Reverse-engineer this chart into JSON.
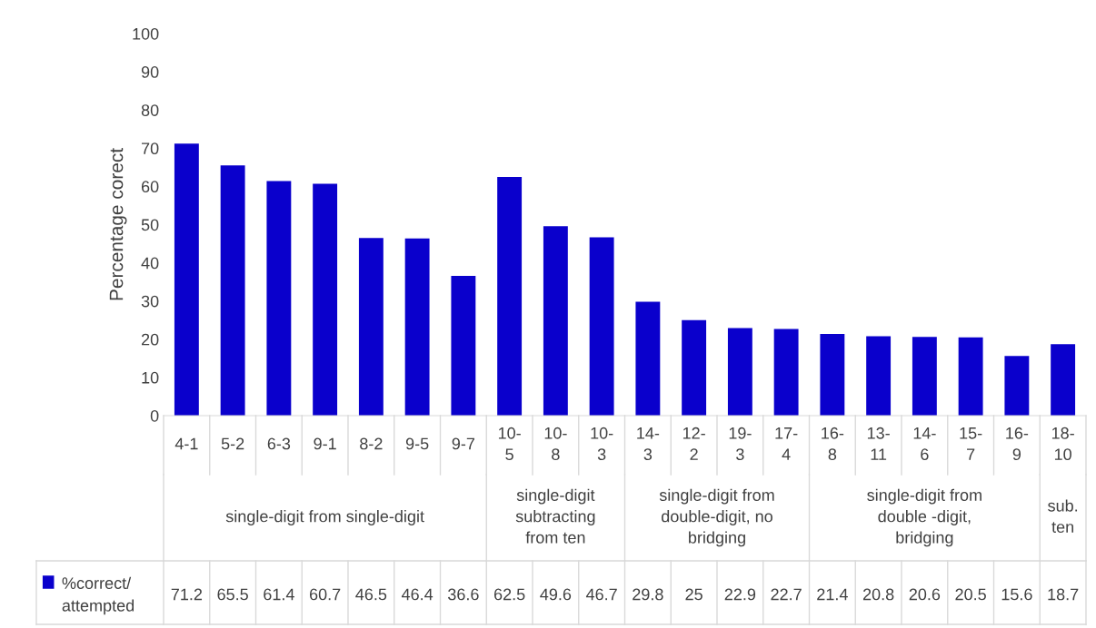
{
  "chart_data": {
    "type": "bar",
    "ylabel": "Percentage corect",
    "ylim": [
      0,
      100
    ],
    "yticks": [
      0,
      10,
      20,
      30,
      40,
      50,
      60,
      70,
      80,
      90,
      100
    ],
    "categories": [
      "4-1",
      "5-2",
      "6-3",
      "9-1",
      "8-2",
      "9-5",
      "9-7",
      "10-5",
      "10-8",
      "10-3",
      "14-3",
      "12-2",
      "19-3",
      "17-4",
      "16-8",
      "13-11",
      "14-6",
      "15-7",
      "16-9",
      "18-10"
    ],
    "series": [
      {
        "name": "%correct/\nattempted",
        "color": "#0a00cc",
        "values": [
          71.2,
          65.5,
          61.4,
          60.7,
          46.5,
          46.4,
          36.6,
          62.5,
          49.6,
          46.7,
          29.8,
          25,
          22.9,
          22.7,
          21.4,
          20.8,
          20.6,
          20.5,
          15.6,
          18.7
        ]
      }
    ],
    "data_labels": true,
    "annotations": [
      "single-digit from single-digit",
      "single-digit\nsubtracting\nfrom ten",
      "single-digit from\ndouble-digit, no\nbridging",
      "single-digit from\ndouble -digit,\nbridging",
      "sub.\nten"
    ]
  }
}
